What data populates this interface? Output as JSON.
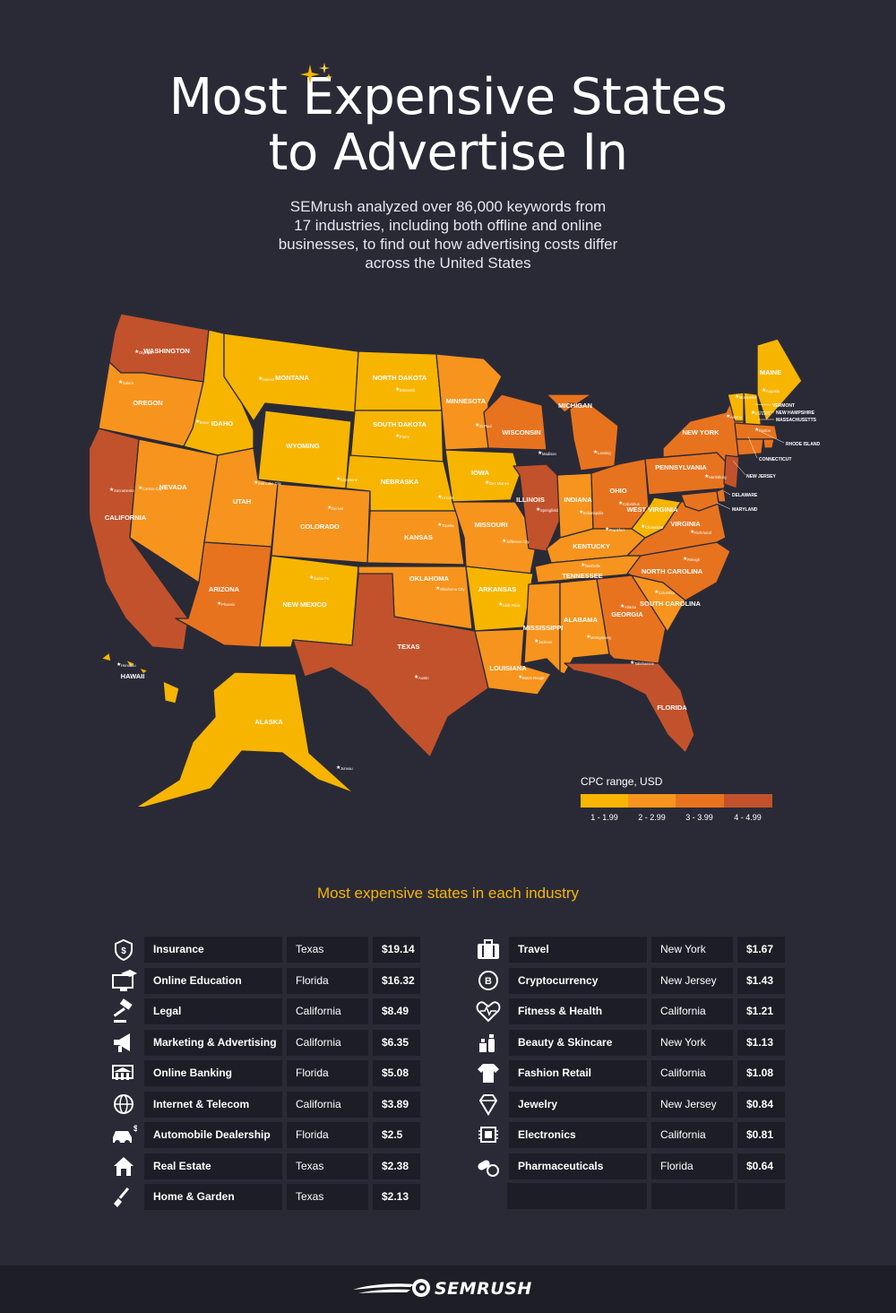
{
  "header": {
    "title_line1": "Most Expensive States",
    "title_line2": "to Advertise In",
    "subtitle_line1": "SEMrush analyzed over 86,000 keywords from",
    "subtitle_line2": "17 industries, including both offline and online",
    "subtitle_line3": "businesses, to find out how advertising costs differ",
    "subtitle_line4": "across the United States"
  },
  "colors": {
    "range1": "#f7b500",
    "range2": "#f7941d",
    "range3": "#e8731e",
    "range4": "#c2522b",
    "background": "#2a2a37",
    "cell": "#1d1d27",
    "accent": "#f7b500"
  },
  "map": {
    "states": [
      {
        "name": "WASHINGTON",
        "capital": "Olympia",
        "range": 4
      },
      {
        "name": "OREGON",
        "capital": "Salem",
        "range": 2
      },
      {
        "name": "CALIFORNIA",
        "capital": "Sacramento",
        "range": 4
      },
      {
        "name": "NEVADA",
        "capital": "Carson City",
        "range": 2
      },
      {
        "name": "IDAHO",
        "capital": "Boise",
        "range": 1
      },
      {
        "name": "MONTANA",
        "capital": "Helena",
        "range": 1
      },
      {
        "name": "WYOMING",
        "capital": "Cheyenne",
        "range": 1
      },
      {
        "name": "UTAH",
        "capital": "Salt Lake City",
        "range": 2
      },
      {
        "name": "ARIZONA",
        "capital": "Phoenix",
        "range": 3
      },
      {
        "name": "COLORADO",
        "capital": "Denver",
        "range": 2
      },
      {
        "name": "NEW MEXICO",
        "capital": "Santa Fe",
        "range": 1
      },
      {
        "name": "NORTH DAKOTA",
        "capital": "Bismarck",
        "range": 1
      },
      {
        "name": "SOUTH DAKOTA",
        "capital": "Pierre",
        "range": 1
      },
      {
        "name": "NEBRASKA",
        "capital": "Lincoln",
        "range": 1
      },
      {
        "name": "KANSAS",
        "capital": "Topeka",
        "range": 2
      },
      {
        "name": "OKLAHOMA",
        "capital": "Oklahoma City",
        "range": 2
      },
      {
        "name": "TEXAS",
        "capital": "Austin",
        "range": 4
      },
      {
        "name": "MINNESOTA",
        "capital": "St Paul",
        "range": 2
      },
      {
        "name": "IOWA",
        "capital": "Des Moines",
        "range": 1
      },
      {
        "name": "MISSOURI",
        "capital": "Jefferson City",
        "range": 2
      },
      {
        "name": "ARKANSAS",
        "capital": "Little Rock",
        "range": 1
      },
      {
        "name": "LOUISIANA",
        "capital": "Baton Rouge",
        "range": 2
      },
      {
        "name": "WISCONSIN",
        "capital": "Madison",
        "range": 3
      },
      {
        "name": "ILLINOIS",
        "capital": "Springfield",
        "range": 4
      },
      {
        "name": "MICHIGAN",
        "capital": "Lansing",
        "range": 3
      },
      {
        "name": "INDIANA",
        "capital": "Indianapolis",
        "range": 2
      },
      {
        "name": "OHIO",
        "capital": "Columbus",
        "range": 3
      },
      {
        "name": "KENTUCKY",
        "capital": "Frankfort",
        "range": 2
      },
      {
        "name": "TENNESSEE",
        "capital": "Nashville",
        "range": 2
      },
      {
        "name": "MISSISSIPPI",
        "capital": "Jackson",
        "range": 2
      },
      {
        "name": "ALABAMA",
        "capital": "Montgomery",
        "range": 2
      },
      {
        "name": "GEORGIA",
        "capital": "Atlanta",
        "range": 3
      },
      {
        "name": "FLORIDA",
        "capital": "Tallahassee",
        "range": 4
      },
      {
        "name": "SOUTH CAROLINA",
        "capital": "Columbia",
        "range": 2
      },
      {
        "name": "NORTH CAROLINA",
        "capital": "Raleigh",
        "range": 3
      },
      {
        "name": "VIRGINIA",
        "capital": "Richmond",
        "range": 3
      },
      {
        "name": "WEST VIRGINIA",
        "capital": "Charleston",
        "range": 1
      },
      {
        "name": "PENNSYLVANIA",
        "capital": "Harrisburg",
        "range": 3
      },
      {
        "name": "NEW YORK",
        "capital": "Albany",
        "range": 3
      },
      {
        "name": "MAINE",
        "capital": "Augusta",
        "range": 1
      },
      {
        "name": "VERMONT",
        "capital": "Montpelier",
        "range": 1
      },
      {
        "name": "NEW HAMPSHIRE",
        "capital": "Concord",
        "range": 1
      },
      {
        "name": "MASSACHUSETTS",
        "capital": "Boston",
        "range": 3
      },
      {
        "name": "RHODE ISLAND",
        "capital": "",
        "range": 3
      },
      {
        "name": "CONNECTICUT",
        "capital": "",
        "range": 3
      },
      {
        "name": "NEW JERSEY",
        "capital": "",
        "range": 4
      },
      {
        "name": "DELAWARE",
        "capital": "",
        "range": 3
      },
      {
        "name": "MARYLAND",
        "capital": "",
        "range": 3
      },
      {
        "name": "ALASKA",
        "capital": "Juneau",
        "range": 1
      },
      {
        "name": "HAWAII",
        "capital": "Honolulu",
        "range": 1
      }
    ],
    "ne_labels": {
      "vermont": "VERMONT",
      "new_hampshire": "NEW HAMPSHIRE",
      "massachusetts": "MASSACHUSETTS",
      "rhode_island": "RHODE ISLAND",
      "connecticut": "CONNECTICUT",
      "new_jersey": "NEW JERSEY",
      "delaware": "DELAWARE",
      "maryland": "MARYLAND"
    }
  },
  "legend": {
    "title": "CPC range, USD",
    "ranges": [
      "1 - 1.99",
      "2 - 2.99",
      "3 - 3.99",
      "4 - 4.99"
    ]
  },
  "industries_title": "Most expensive states in each industry",
  "industries_left": [
    {
      "icon": "insurance-icon",
      "industry": "Insurance",
      "state": "Texas",
      "price": "$19.14"
    },
    {
      "icon": "graduation-cap-icon",
      "industry": "Online Education",
      "state": "Florida",
      "price": "$16.32"
    },
    {
      "icon": "gavel-icon",
      "industry": "Legal",
      "state": "California",
      "price": "$8.49"
    },
    {
      "icon": "megaphone-icon",
      "industry": "Marketing & Advertising",
      "state": "California",
      "price": "$6.35"
    },
    {
      "icon": "bank-icon",
      "industry": "Online Banking",
      "state": "Florida",
      "price": "$5.08"
    },
    {
      "icon": "globe-icon",
      "industry": "Internet & Telecom",
      "state": "California",
      "price": "$3.89"
    },
    {
      "icon": "car-icon",
      "industry": "Automobile Dealership",
      "state": "Florida",
      "price": "$2.5"
    },
    {
      "icon": "house-icon",
      "industry": "Real Estate",
      "state": "Texas",
      "price": "$2.38"
    },
    {
      "icon": "shovel-icon",
      "industry": "Home & Garden",
      "state": "Texas",
      "price": "$2.13"
    }
  ],
  "industries_right": [
    {
      "icon": "suitcase-icon",
      "industry": "Travel",
      "state": "New York",
      "price": "$1.67"
    },
    {
      "icon": "bitcoin-icon",
      "industry": "Cryptocurrency",
      "state": "New Jersey",
      "price": "$1.43"
    },
    {
      "icon": "heart-pulse-icon",
      "industry": "Fitness & Health",
      "state": "California",
      "price": "$1.21"
    },
    {
      "icon": "cosmetics-icon",
      "industry": "Beauty & Skincare",
      "state": "New York",
      "price": "$1.13"
    },
    {
      "icon": "tshirt-icon",
      "industry": "Fashion Retail",
      "state": "California",
      "price": "$1.08"
    },
    {
      "icon": "diamond-icon",
      "industry": "Jewelry",
      "state": "New Jersey",
      "price": "$0.84"
    },
    {
      "icon": "chip-icon",
      "industry": "Electronics",
      "state": "California",
      "price": "$0.81"
    },
    {
      "icon": "pills-icon",
      "industry": "Pharmaceuticals",
      "state": "Florida",
      "price": "$0.64"
    }
  ],
  "footer": {
    "brand": "SEMRUSH"
  }
}
